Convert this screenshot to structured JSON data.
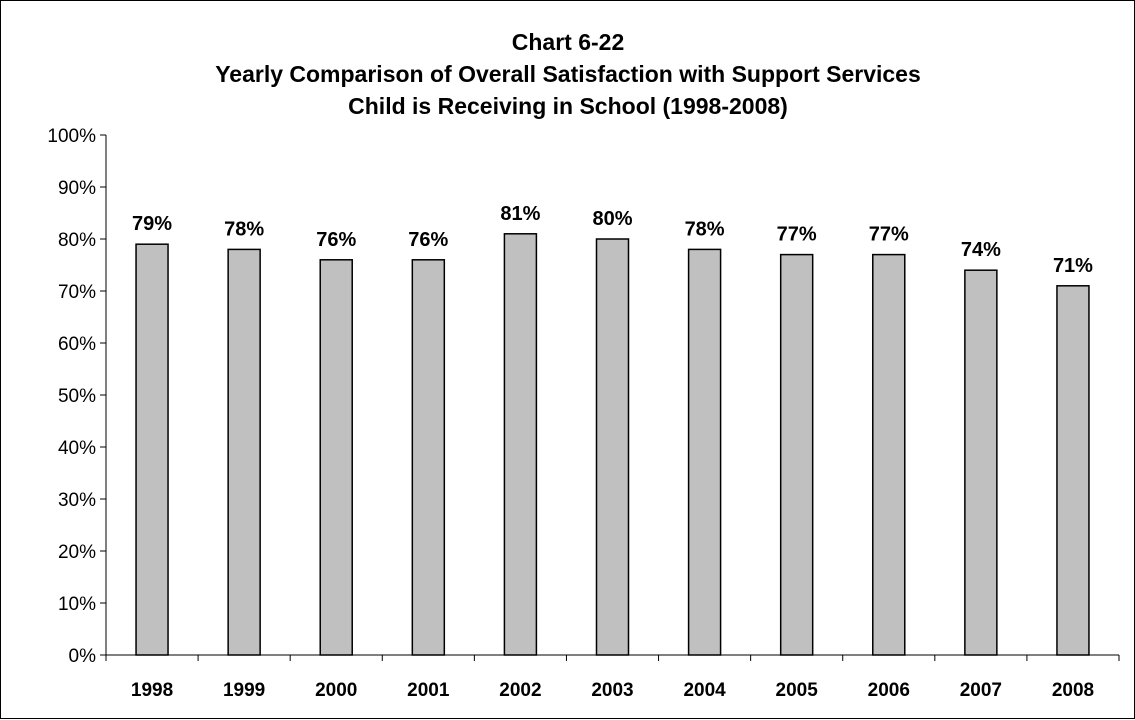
{
  "chart_data": {
    "type": "bar",
    "title_lines": [
      "Chart 6-22",
      "Yearly Comparison of Overall Satisfaction with Support Services",
      "Child is Receiving in School (1998-2008)"
    ],
    "categories": [
      "1998",
      "1999",
      "2000",
      "2001",
      "2002",
      "2003",
      "2004",
      "2005",
      "2006",
      "2007",
      "2008"
    ],
    "values": [
      79,
      78,
      76,
      76,
      81,
      80,
      78,
      77,
      77,
      74,
      71
    ],
    "data_labels": [
      "79%",
      "78%",
      "76%",
      "76%",
      "81%",
      "80%",
      "78%",
      "77%",
      "77%",
      "74%",
      "71%"
    ],
    "y_ticks": [
      0,
      10,
      20,
      30,
      40,
      50,
      60,
      70,
      80,
      90,
      100
    ],
    "y_tick_labels": [
      "0%",
      "10%",
      "20%",
      "30%",
      "40%",
      "50%",
      "60%",
      "70%",
      "80%",
      "90%",
      "100%"
    ],
    "ylim": [
      0,
      100
    ],
    "xlabel": "",
    "ylabel": "",
    "grid": false,
    "legend": "none",
    "bar_color": "#c0c0c0",
    "bar_edge_color": "#000000"
  }
}
